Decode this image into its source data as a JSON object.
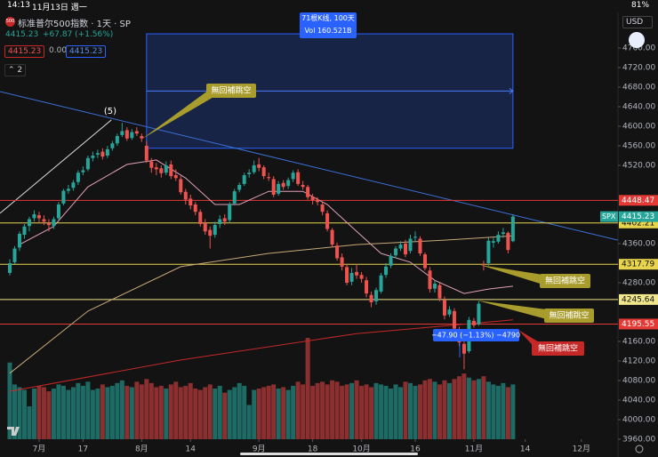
{
  "status_bar": {
    "time": "14:13",
    "date": "11月13日 週一",
    "battery": "81%"
  },
  "header": {
    "logo": "500",
    "symbol": "标准普尔500指数 · 1天 · SP",
    "price": "4415.23",
    "change": "+67.87 (+1.56%)",
    "inputs": [
      "4415.23",
      "0.00",
      "4415.23"
    ],
    "indicator_count": "2"
  },
  "chart_data": {
    "type": "candlestick",
    "currency": "USD",
    "symbol_tag": "SPX",
    "up_color": "#26a69a",
    "down_color": "#ef5350",
    "ylim": [
      3960,
      4800
    ],
    "xlim": [
      -2,
      124.5
    ],
    "volume_ylim": [
      0,
      30
    ],
    "yticks": [
      {
        "value": 4760,
        "label": "4760.00"
      },
      {
        "value": 4720,
        "label": "4720.00"
      },
      {
        "value": 4680,
        "label": "4680.00"
      },
      {
        "value": 4640,
        "label": "4640.00"
      },
      {
        "value": 4600,
        "label": "4600.00"
      },
      {
        "value": 4560,
        "label": "4560.00"
      },
      {
        "value": 4520,
        "label": "4520.00"
      },
      {
        "value": 4360,
        "label": "4360.00"
      },
      {
        "value": 4280,
        "label": "4280.00"
      },
      {
        "value": 4160,
        "label": "4160.00"
      },
      {
        "value": 4120,
        "label": "4120.00"
      },
      {
        "value": 4080,
        "label": "4080.00"
      },
      {
        "value": 4040,
        "label": "4040.00"
      },
      {
        "value": 4000,
        "label": "4000.00"
      },
      {
        "value": 3960,
        "label": "3960.00"
      }
    ],
    "xticks": [
      {
        "value": 6,
        "label": "7月"
      },
      {
        "value": 15,
        "label": "17"
      },
      {
        "value": 27,
        "label": "8月"
      },
      {
        "value": 37,
        "label": "14"
      },
      {
        "value": 51,
        "label": "9月"
      },
      {
        "value": 62,
        "label": "18"
      },
      {
        "value": 72,
        "label": "10月"
      },
      {
        "value": 83,
        "label": "16"
      },
      {
        "value": 95,
        "label": "11月"
      },
      {
        "value": 105.5,
        "label": "14"
      },
      {
        "value": 117,
        "label": "12月"
      }
    ],
    "ohlc": [
      [
        4300,
        4328,
        4295,
        4320
      ],
      [
        4322,
        4355,
        4318,
        4350
      ],
      [
        4352,
        4385,
        4345,
        4380
      ],
      [
        4378,
        4400,
        4370,
        4395
      ],
      [
        4396,
        4415,
        4385,
        4410
      ],
      [
        4412,
        4428,
        4405,
        4420
      ],
      [
        4418,
        4425,
        4402,
        4412
      ],
      [
        4410,
        4418,
        4398,
        4405
      ],
      [
        4402,
        4410,
        4385,
        4398
      ],
      [
        4396,
        4415,
        4390,
        4410
      ],
      [
        4412,
        4445,
        4408,
        4440
      ],
      [
        4442,
        4472,
        4438,
        4468
      ],
      [
        4468,
        4480,
        4462,
        4472
      ],
      [
        4474,
        4490,
        4468,
        4485
      ],
      [
        4486,
        4510,
        4480,
        4505
      ],
      [
        4506,
        4518,
        4500,
        4510
      ],
      [
        4512,
        4540,
        4508,
        4535
      ],
      [
        4535,
        4548,
        4528,
        4540
      ],
      [
        4542,
        4552,
        4535,
        4545
      ],
      [
        4548,
        4555,
        4532,
        4538
      ],
      [
        4540,
        4560,
        4535,
        4553
      ],
      [
        4555,
        4570,
        4550,
        4565
      ],
      [
        4565,
        4585,
        4560,
        4580
      ],
      [
        4582,
        4607,
        4578,
        4590
      ],
      [
        4592,
        4598,
        4570,
        4575
      ],
      [
        4576,
        4594,
        4572,
        4588
      ],
      [
        4590,
        4598,
        4580,
        4585
      ],
      [
        4580,
        4585,
        4568,
        4575
      ],
      [
        4560,
        4570,
        4525,
        4530
      ],
      [
        4528,
        4535,
        4505,
        4515
      ],
      [
        4516,
        4525,
        4500,
        4512
      ],
      [
        4514,
        4520,
        4495,
        4504
      ],
      [
        4505,
        4528,
        4500,
        4520
      ],
      [
        4522,
        4530,
        4492,
        4498
      ],
      [
        4500,
        4512,
        4488,
        4494
      ],
      [
        4492,
        4498,
        4460,
        4465
      ],
      [
        4466,
        4472,
        4440,
        4450
      ],
      [
        4452,
        4460,
        4430,
        4438
      ],
      [
        4440,
        4445,
        4418,
        4425
      ],
      [
        4425,
        4430,
        4395,
        4400
      ],
      [
        4402,
        4410,
        4378,
        4385
      ],
      [
        4388,
        4395,
        4350,
        4376
      ],
      [
        4378,
        4405,
        4372,
        4398
      ],
      [
        4400,
        4418,
        4392,
        4410
      ],
      [
        4412,
        4420,
        4398,
        4405
      ],
      [
        4408,
        4445,
        4402,
        4440
      ],
      [
        4442,
        4472,
        4438,
        4467
      ],
      [
        4470,
        4485,
        4465,
        4480
      ],
      [
        4482,
        4505,
        4478,
        4500
      ],
      [
        4502,
        4512,
        4495,
        4505
      ],
      [
        4506,
        4530,
        4502,
        4520
      ],
      [
        4522,
        4535,
        4508,
        4515
      ],
      [
        4516,
        4520,
        4492,
        4498
      ],
      [
        4496,
        4505,
        4488,
        4494
      ],
      [
        4492,
        4498,
        4455,
        4460
      ],
      [
        4462,
        4488,
        4458,
        4482
      ],
      [
        4484,
        4490,
        4470,
        4476
      ],
      [
        4478,
        4495,
        4472,
        4490
      ],
      [
        4492,
        4510,
        4486,
        4505
      ],
      [
        4506,
        4512,
        4478,
        4482
      ],
      [
        4480,
        4488,
        4470,
        4476
      ],
      [
        4476,
        4480,
        4450,
        4455
      ],
      [
        4456,
        4462,
        4440,
        4449
      ],
      [
        4450,
        4455,
        4438,
        4445
      ],
      [
        4440,
        4445,
        4418,
        4425
      ],
      [
        4422,
        4428,
        4385,
        4390
      ],
      [
        4388,
        4392,
        4352,
        4358
      ],
      [
        4356,
        4362,
        4325,
        4330
      ],
      [
        4332,
        4340,
        4305,
        4313
      ],
      [
        4312,
        4318,
        4275,
        4280
      ],
      [
        4282,
        4310,
        4275,
        4300
      ],
      [
        4302,
        4318,
        4288,
        4295
      ],
      [
        4296,
        4302,
        4280,
        4288
      ],
      [
        4285,
        4292,
        4250,
        4258
      ],
      [
        4255,
        4262,
        4230,
        4240
      ],
      [
        4242,
        4270,
        4235,
        4265
      ],
      [
        4262,
        4300,
        4258,
        4295
      ],
      [
        4296,
        4320,
        4290,
        4313
      ],
      [
        4315,
        4340,
        4310,
        4335
      ],
      [
        4336,
        4355,
        4330,
        4350
      ],
      [
        4350,
        4365,
        4345,
        4358
      ],
      [
        4360,
        4368,
        4332,
        4338
      ],
      [
        4345,
        4378,
        4340,
        4370
      ],
      [
        4372,
        4385,
        4365,
        4374
      ],
      [
        4370,
        4375,
        4335,
        4340
      ],
      [
        4338,
        4342,
        4305,
        4310
      ],
      [
        4305,
        4312,
        4260,
        4267
      ],
      [
        4268,
        4285,
        4260,
        4278
      ],
      [
        4275,
        4280,
        4242,
        4248
      ],
      [
        4245,
        4252,
        4205,
        4213
      ],
      [
        4215,
        4232,
        4210,
        4225
      ],
      [
        4222,
        4228,
        4180,
        4186
      ],
      [
        4184,
        4190,
        4150,
        4158
      ],
      [
        4155,
        4165,
        4103,
        4135
      ],
      [
        4140,
        4210,
        4136,
        4204
      ],
      [
        4202,
        4208,
        4188,
        4193
      ],
      [
        4195,
        4242,
        4192,
        4237
      ],
      [
        4318,
        4325,
        4305,
        4317
      ],
      [
        4320,
        4372,
        4315,
        4366
      ],
      [
        4362,
        4372,
        4352,
        4365
      ],
      [
        4364,
        4385,
        4360,
        4378
      ],
      [
        4380,
        4392,
        4372,
        4383
      ],
      [
        4382,
        4385,
        4340,
        4347
      ],
      [
        4365,
        4420,
        4363,
        4415.23
      ]
    ],
    "volume": [
      5.6,
      4.0,
      3.8,
      3.6,
      2.4,
      3.7,
      3.9,
      3.8,
      3.5,
      3.7,
      4.0,
      3.9,
      3.6,
      3.8,
      4.1,
      3.9,
      4.2,
      3.6,
      3.7,
      4.0,
      3.8,
      3.9,
      4.1,
      4.3,
      3.9,
      3.8,
      4.2,
      4.0,
      4.4,
      4.1,
      3.8,
      3.9,
      3.7,
      4.0,
      4.2,
      3.8,
      3.9,
      4.1,
      3.7,
      3.6,
      3.8,
      4.0,
      3.7,
      3.9,
      3.4,
      3.6,
      3.8,
      4.1,
      3.9,
      2.5,
      3.6,
      3.7,
      3.8,
      3.9,
      4.0,
      3.7,
      3.8,
      3.6,
      3.9,
      4.2,
      4.0,
      7.4,
      3.9,
      4.1,
      4.2,
      4.0,
      4.3,
      4.2,
      3.9,
      4.0,
      4.1,
      4.3,
      3.9,
      4.0,
      3.8,
      4.1,
      4.0,
      3.9,
      3.7,
      4.0,
      3.8,
      4.2,
      4.1,
      3.9,
      4.0,
      4.3,
      4.4,
      4.2,
      4.0,
      4.3,
      4.1,
      4.4,
      4.6,
      4.8,
      4.5,
      4.3,
      4.4,
      4.6,
      4.2,
      4.0,
      3.9,
      4.1,
      3.8,
      4.0
    ],
    "moving_averages": [
      {
        "color": "#e0a0b8",
        "x": [
          2,
          9,
          16,
          24,
          30,
          36,
          42,
          47,
          53,
          60,
          65,
          71,
          76,
          82,
          87,
          93,
          98,
          103
        ],
        "values": [
          4358,
          4395,
          4476,
          4522,
          4531,
          4494,
          4440,
          4440,
          4467,
          4467,
          4440,
          4385,
          4340,
          4322,
          4285,
          4258,
          4267,
          4273
        ]
      },
      {
        "color": "#c8a878",
        "x": [
          0,
          16,
          35,
          53,
          71,
          89,
          103
        ],
        "values": [
          4095,
          4222,
          4313,
          4340,
          4358,
          4367,
          4376
        ]
      },
      {
        "color": "#c62828",
        "x": [
          0,
          35,
          71,
          103
        ],
        "values": [
          4058,
          4122,
          4176,
          4204
        ]
      }
    ],
    "price_lines": [
      {
        "value": 4448.47,
        "color": "#e53935"
      },
      {
        "value": 4402.21,
        "color": "#e8d44d"
      },
      {
        "value": 4317.79,
        "color": "#e8d44d"
      },
      {
        "value": 4245.64,
        "color": "#f0e68c"
      },
      {
        "value": 4195.55,
        "color": "#e53935"
      }
    ],
    "last_price": {
      "value": 4415.23,
      "color": "#26a69a"
    },
    "trend_lines": [
      {
        "color": "#3b6fd8",
        "x": [
          -2,
          124.5
        ],
        "values": [
          4671,
          4367
        ]
      },
      {
        "color": "#e0e0e0",
        "x": [
          -2,
          20.8
        ],
        "values": [
          4422,
          4613
        ]
      }
    ],
    "range_box": {
      "x": [
        28,
        103
      ],
      "values": [
        4555,
        4789
      ],
      "lines": [
        "71根K线, 100天",
        "Vol 160.521B"
      ]
    },
    "measure_label": "−47.90 (−1.13%) −4790",
    "wave_label": "(5)",
    "annotations": [
      "無回補跳空",
      "無回補跳空",
      "無回補跳空",
      "無回補跳空"
    ],
    "annotation_colors": [
      "#a89c2c",
      "#a89c2c",
      "#a89c2c",
      "#c62828"
    ]
  }
}
